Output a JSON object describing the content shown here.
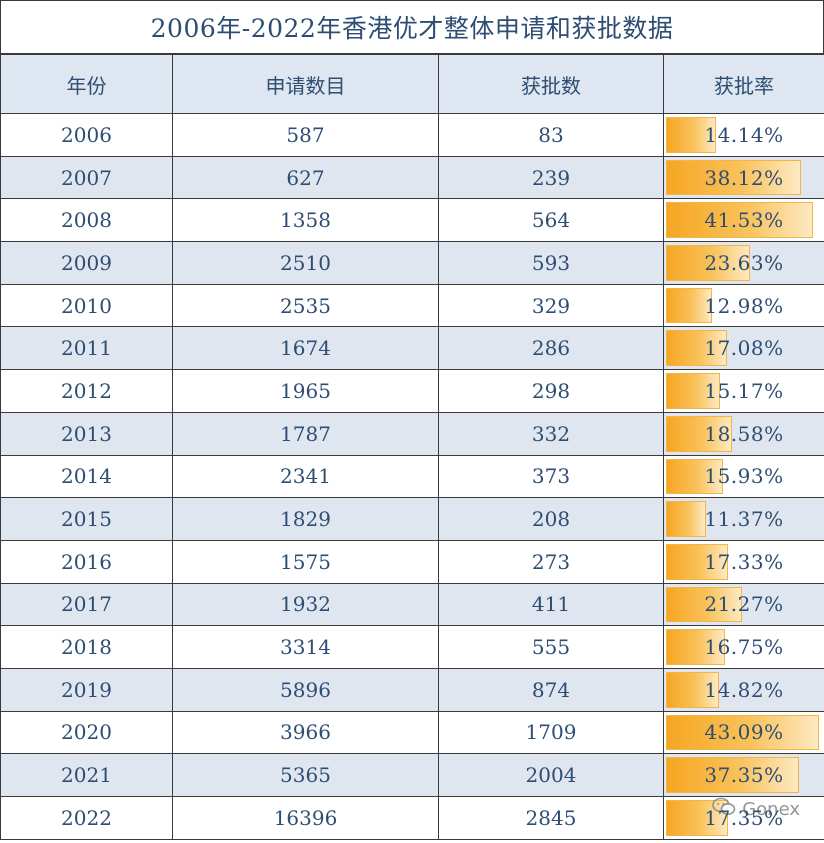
{
  "title": "2006年-2022年香港优才整体申请和获批数据",
  "headers": [
    "年份",
    "申请数目",
    "获批数",
    "获批率"
  ],
  "rows": [
    {
      "year": "2006",
      "applications": "587",
      "approved": "83",
      "rate": "14.14%",
      "rate_value": 14.14
    },
    {
      "year": "2007",
      "applications": "627",
      "approved": "239",
      "rate": "38.12%",
      "rate_value": 38.12
    },
    {
      "year": "2008",
      "applications": "1358",
      "approved": "564",
      "rate": "41.53%",
      "rate_value": 41.53
    },
    {
      "year": "2009",
      "applications": "2510",
      "approved": "593",
      "rate": "23.63%",
      "rate_value": 23.63
    },
    {
      "year": "2010",
      "applications": "2535",
      "approved": "329",
      "rate": "12.98%",
      "rate_value": 12.98
    },
    {
      "year": "2011",
      "applications": "1674",
      "approved": "286",
      "rate": "17.08%",
      "rate_value": 17.08
    },
    {
      "year": "2012",
      "applications": "1965",
      "approved": "298",
      "rate": "15.17%",
      "rate_value": 15.17
    },
    {
      "year": "2013",
      "applications": "1787",
      "approved": "332",
      "rate": "18.58%",
      "rate_value": 18.58
    },
    {
      "year": "2014",
      "applications": "2341",
      "approved": "373",
      "rate": "15.93%",
      "rate_value": 15.93
    },
    {
      "year": "2015",
      "applications": "1829",
      "approved": "208",
      "rate": "11.37%",
      "rate_value": 11.37
    },
    {
      "year": "2016",
      "applications": "1575",
      "approved": "273",
      "rate": "17.33%",
      "rate_value": 17.33
    },
    {
      "year": "2017",
      "applications": "1932",
      "approved": "411",
      "rate": "21.27%",
      "rate_value": 21.27
    },
    {
      "year": "2018",
      "applications": "3314",
      "approved": "555",
      "rate": "16.75%",
      "rate_value": 16.75
    },
    {
      "year": "2019",
      "applications": "5896",
      "approved": "874",
      "rate": "14.82%",
      "rate_value": 14.82
    },
    {
      "year": "2020",
      "applications": "3966",
      "approved": "1709",
      "rate": "43.09%",
      "rate_value": 43.09
    },
    {
      "year": "2021",
      "applications": "5365",
      "approved": "2004",
      "rate": "37.35%",
      "rate_value": 37.35
    },
    {
      "year": "2022",
      "applications": "16396",
      "approved": "2845",
      "rate": "17.35%",
      "rate_value": 17.35
    }
  ],
  "rate_bar_max": 43.09,
  "colors": {
    "header_bg": "#dde6f1",
    "stripe_bg": "#dfe6f0",
    "bar": "#f6a623",
    "text": "#2e4d73"
  },
  "watermark": {
    "icon": "wechat-icon",
    "text": "Gonex"
  }
}
